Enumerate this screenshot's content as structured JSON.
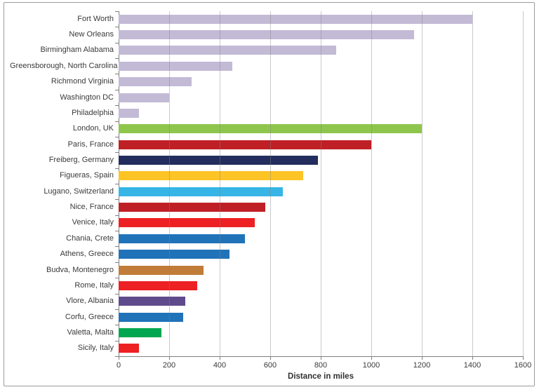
{
  "chart_data": {
    "type": "bar",
    "orientation": "horizontal",
    "title": "",
    "xlabel": "Distance in miles",
    "ylabel": "",
    "xlim": [
      0,
      1600
    ],
    "xticks": [
      0,
      200,
      400,
      600,
      800,
      1000,
      1200,
      1400,
      1600
    ],
    "grid": true,
    "legend": false,
    "categories": [
      "Fort Worth",
      "New Orleans",
      "Birmingham Alabama",
      "Greensborough, North Carolina",
      "Richmond Virginia",
      "Washington DC",
      "Philadelphia",
      "London, UK",
      "Paris, France",
      "Freiberg, Germany",
      "Figueras, Spain",
      "Lugano, Switzerland",
      "Nice, France",
      "Venice, Italy",
      "Chania, Crete",
      "Athens, Greece",
      "Budva, Montenegro",
      "Rome, Italy",
      "Vlore, Albania",
      "Corfu, Greece",
      "Valetta, Malta",
      "Sicily, Italy"
    ],
    "values": [
      1400,
      1170,
      860,
      450,
      290,
      200,
      80,
      1200,
      1000,
      790,
      730,
      650,
      580,
      540,
      500,
      440,
      335,
      310,
      265,
      255,
      170,
      80
    ],
    "bar_colors": [
      "#c3bad6",
      "#c3bad6",
      "#c3bad6",
      "#c3bad6",
      "#c3bad6",
      "#c3bad6",
      "#c3bad6",
      "#8ec64d",
      "#bf2026",
      "#232e5e",
      "#fdc426",
      "#36b5e6",
      "#bf2026",
      "#ed2024",
      "#2173b9",
      "#2173b9",
      "#c07c38",
      "#ed2024",
      "#5f4b8c",
      "#2173b9",
      "#00a650",
      "#ed2024"
    ],
    "colors_legend": {
      "us_cities": "#c3bad6",
      "london": "#8ec64d",
      "dark_red": "#bf2026",
      "navy": "#232e5e",
      "amber": "#fdc426",
      "light_blue": "#36b5e6",
      "bright_red": "#ed2024",
      "blue": "#2173b9",
      "brown": "#c07c38",
      "purple": "#5f4b8c",
      "green": "#00a650"
    },
    "axis_color": "#7f7f7f",
    "gridline_color": "#a6a6a6",
    "text_color": "#3a3a3a"
  }
}
